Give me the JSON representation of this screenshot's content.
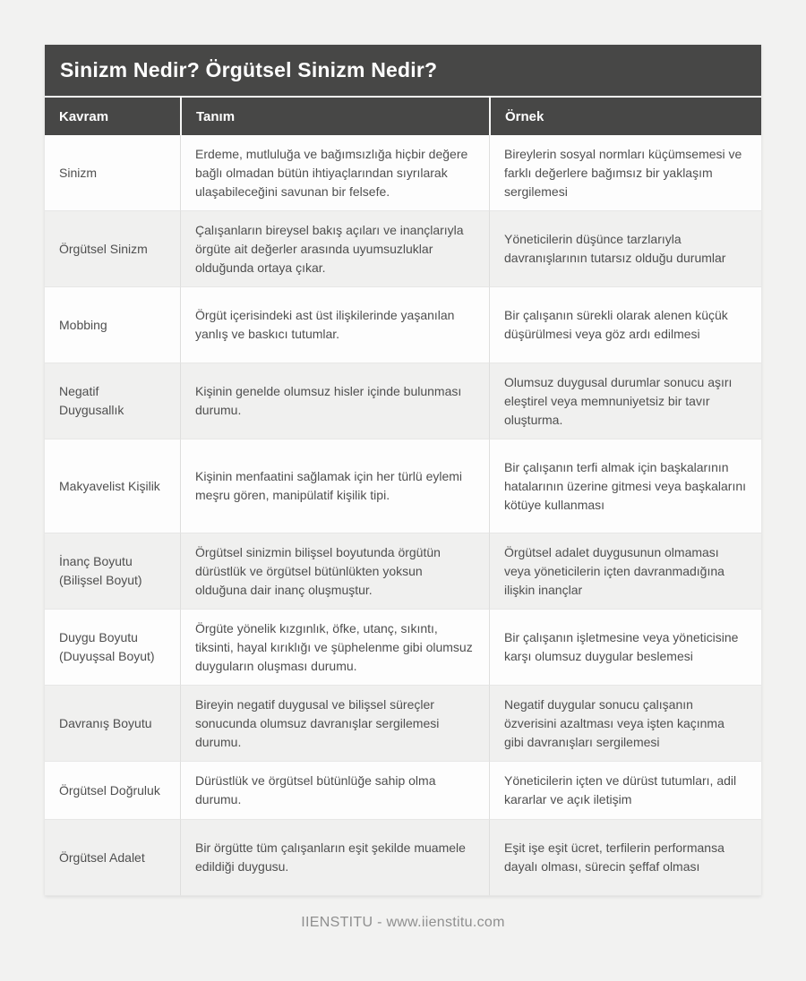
{
  "page": {
    "title": "Sinizm Nedir? Örgütsel Sinizm Nedir?",
    "footer": "IIENSTITU - www.iienstitu.com"
  },
  "table": {
    "columns": [
      "Kavram",
      "Tanım",
      "Örnek"
    ],
    "rows": [
      {
        "kavram": "Sinizm",
        "tanim": "Erdeme, mutluluğa ve bağımsızlığa hiçbir değere bağlı olmadan bütün ihtiyaçlarından sıyrılarak ulaşabileceğini savunan bir felsefe.",
        "ornek": "Bireylerin sosyal normları küçümsemesi ve farklı değerlere bağımsız bir yaklaşım sergilemesi"
      },
      {
        "kavram": "Örgütsel Sinizm",
        "tanim": "Çalışanların bireysel bakış açıları ve inançlarıyla örgüte ait değerler arasında uyumsuzluklar olduğunda ortaya çıkar.",
        "ornek": "Yöneticilerin düşünce tarzlarıyla davranışlarının tutarsız olduğu durumlar"
      },
      {
        "kavram": "Mobbing",
        "tanim": "Örgüt içerisindeki ast üst ilişkilerinde yaşanılan yanlış ve baskıcı tutumlar.",
        "ornek": "Bir çalışanın sürekli olarak alenen küçük düşürülmesi veya göz ardı edilmesi"
      },
      {
        "kavram": "Negatif Duygusallık",
        "tanim": "Kişinin genelde olumsuz hisler içinde bulunması durumu.",
        "ornek": "Olumsuz duygusal durumlar sonucu aşırı eleştirel veya memnuniyetsiz bir tavır oluşturma."
      },
      {
        "kavram": "Makyavelist Kişilik",
        "tanim": "Kişinin menfaatini sağlamak için her türlü eylemi meşru gören, manipülatif kişilik tipi.",
        "ornek": "Bir çalışanın terfi almak için başkalarının hatalarının üzerine gitmesi veya başkalarını kötüye kullanması"
      },
      {
        "kavram": "İnanç Boyutu (Bilişsel Boyut)",
        "tanim": "Örgütsel sinizmin bilişsel boyutunda örgütün dürüstlük ve örgütsel bütünlükten yoksun olduğuna dair inanç oluşmuştur.",
        "ornek": "Örgütsel adalet duygusunun olmaması veya yöneticilerin içten davranmadığına ilişkin inançlar"
      },
      {
        "kavram": "Duygu Boyutu (Duyuşsal Boyut)",
        "tanim": "Örgüte yönelik kızgınlık, öfke, utanç, sıkıntı, tiksinti, hayal kırıklığı ve şüphelenme gibi olumsuz duyguların oluşması durumu.",
        "ornek": "Bir çalışanın işletmesine veya yöneticisine karşı olumsuz duygular beslemesi"
      },
      {
        "kavram": "Davranış Boyutu",
        "tanim": "Bireyin negatif duygusal ve bilişsel süreçler sonucunda olumsuz davranışlar sergilemesi durumu.",
        "ornek": "Negatif duygular sonucu çalışanın özverisini azaltması veya işten kaçınma gibi davranışları sergilemesi"
      },
      {
        "kavram": "Örgütsel Doğruluk",
        "tanim": "Dürüstlük ve örgütsel bütünlüğe sahip olma durumu.",
        "ornek": "Yöneticilerin içten ve dürüst tutumları, adil kararlar ve açık iletişim"
      },
      {
        "kavram": "Örgütsel Adalet",
        "tanim": "Bir örgütte tüm çalışanların eşit şekilde muamele edildiği duygusu.",
        "ornek": "Eşit işe eşit ücret, terfilerin performansa dayalı olması, sürecin şeffaf olması"
      }
    ]
  },
  "colors": {
    "page_bg": "#f2f2f1",
    "bar_bg": "#474746",
    "row_bg": "#fdfdfd",
    "row_alt_bg": "#f0f0ef",
    "cell_text": "#4f4f4f",
    "head_text": "#ffffff",
    "footer_text": "#8f8f8f"
  }
}
